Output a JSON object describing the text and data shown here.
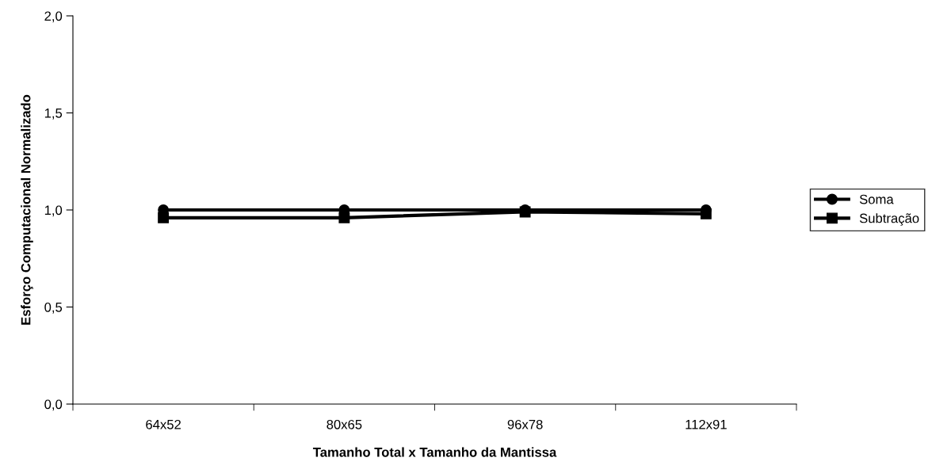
{
  "chart_data": {
    "type": "line",
    "xlabel": "Tamanho Total x Tamanho da Mantissa",
    "ylabel": "Esforço Computacional Normalizado",
    "categories": [
      "64x52",
      "80x65",
      "96x78",
      "112x91"
    ],
    "series": [
      {
        "name": "Soma",
        "color": "#000000",
        "marker": "circle",
        "values": [
          1.0,
          1.0,
          1.0,
          1.0
        ]
      },
      {
        "name": "Subtração",
        "color": "#000000",
        "marker": "square",
        "values": [
          0.96,
          0.96,
          0.99,
          0.98
        ]
      }
    ],
    "ylim": [
      0,
      2
    ],
    "yticks": [
      {
        "value": 0,
        "label": "0,0"
      },
      {
        "value": 0.5,
        "label": "0,5"
      },
      {
        "value": 1,
        "label": "1,0"
      },
      {
        "value": 1.5,
        "label": "1,5"
      },
      {
        "value": 2,
        "label": "2,0"
      }
    ],
    "grid": false,
    "legend": "right",
    "line_style": "solid"
  }
}
